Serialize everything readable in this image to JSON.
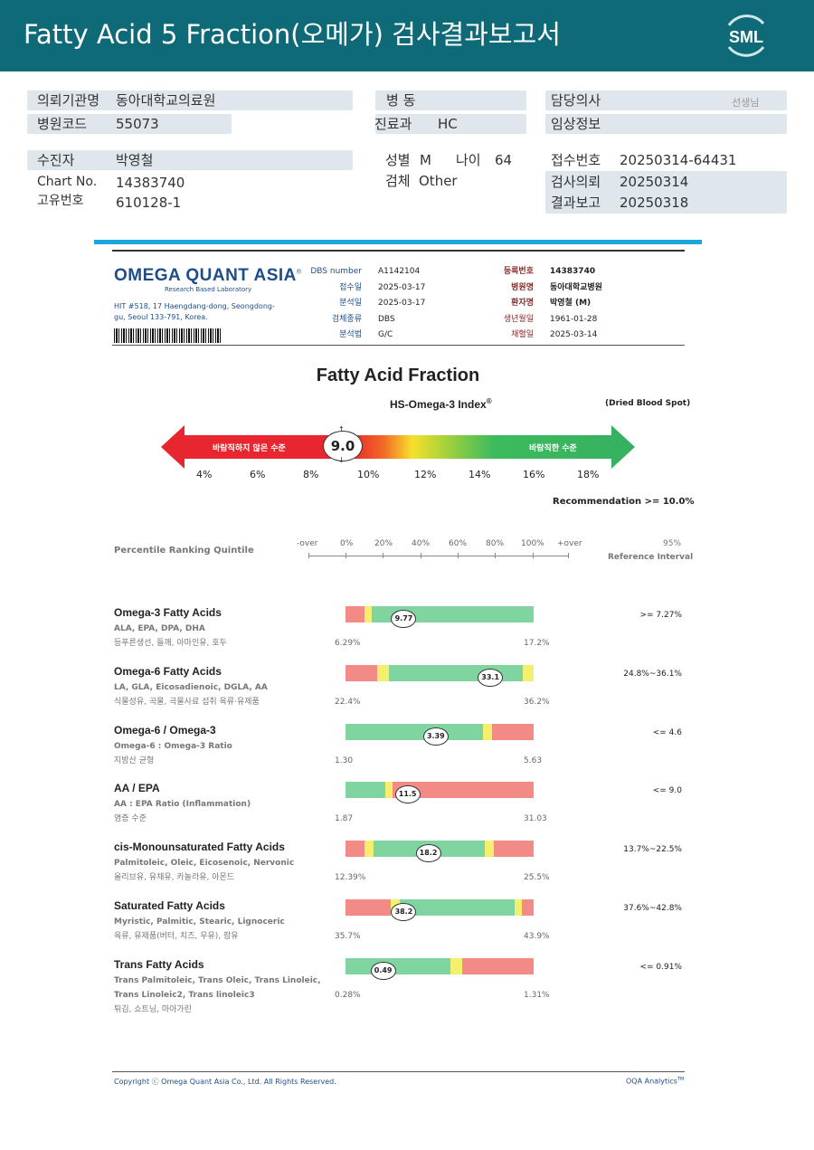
{
  "header": {
    "title": "Fatty Acid 5 Fraction(오메가) 검사결과보고서",
    "logo_text": "SML"
  },
  "patient": {
    "institution_label": "의뢰기관명",
    "institution": "동아대학교의료원",
    "hospital_code_label": "병원코드",
    "hospital_code": "55073",
    "ward_label": "병 동",
    "ward": "",
    "dept_label": "진료과",
    "dept": "HC",
    "doctor_label": "담당의사",
    "doctor_suffix": "선생님",
    "clinical_label": "임상정보",
    "name_label": "수진자",
    "name": "박영철",
    "chart_label": "Chart No.",
    "chart": "14383740",
    "unique_label": "고유번호",
    "unique": "610128-1",
    "sex_label": "성별",
    "sex": "M",
    "age_label": "나이",
    "age": "64",
    "specimen_label": "검체",
    "specimen": "Other",
    "receipt_label": "접수번호",
    "receipt": "20250314-64431",
    "request_label": "검사의뢰",
    "request": "20250314",
    "report_label": "결과보고",
    "report": "20250318"
  },
  "report_meta": {
    "logo": "OMEGA QUANT ASIA",
    "logo_reg": "®",
    "subtitle": "Research Based Laboratory",
    "address": "HIT #518, 17 Haengdang-dong, Seongdong-gu, Seoul 133-791, Korea.",
    "dbs_label": "DBS number",
    "dbs": "A1142104",
    "recv_label": "접수일",
    "recv": "2025-03-17",
    "analysis_label": "분석일",
    "analysis": "2025-03-17",
    "spec_label": "검체종류",
    "spec": "DBS",
    "method_label": "분석법",
    "method": "G/C",
    "reg_label": "등록번호",
    "reg": "14383740",
    "hosp_label": "병원명",
    "hosp": "동아대학교병원",
    "patient_label": "환자명",
    "patient": "박영철 (M)",
    "dob_label": "생년월일",
    "dob": "1961-01-28",
    "collect_label": "채혈일",
    "collect": "2025-03-14"
  },
  "omega_index": {
    "title": "Fatty Acid Fraction",
    "index_label": "HS-Omega-3 Index",
    "index_sup": "®",
    "sample_type": "(Dried Blood Spot)",
    "value": "9.0",
    "undesirable": "바람직하지 않은 수준",
    "desirable": "바람직한 수준",
    "ticks": [
      "4%",
      "6%",
      "8%",
      "10%",
      "12%",
      "14%",
      "16%",
      "18%"
    ],
    "recommendation": "Recommendation  >= 10.0%"
  },
  "scale": {
    "label": "Percentile Ranking Quintile",
    "ticks": [
      "-over",
      "0%",
      "20%",
      "40%",
      "60%",
      "80%",
      "100%",
      "+over"
    ],
    "ref_pct": "95%",
    "ref_label": "Reference Interval"
  },
  "rows": [
    {
      "name": "Omega-3 Fatty Acids",
      "components": "ALA, EPA, DPA, DHA",
      "foods": "등푸른생선, 들깨, 아마인유, 호두",
      "value": "9.77",
      "min": "6.29%",
      "max": "17.2%",
      "ref": ">= 7.27%",
      "segments": [
        [
          "#f28a86",
          0.1
        ],
        [
          "#f5ef6e",
          0.04
        ],
        [
          "#7fd4a0",
          0.86
        ]
      ],
      "marker": 0.31
    },
    {
      "name": "Omega-6 Fatty Acids",
      "components": "LA, GLA, Eicosadienoic, DGLA, AA",
      "foods": "식물성유, 곡물, 곡물사료 섭취 육류·유제품",
      "value": "33.1",
      "min": "22.4%",
      "max": "36.2%",
      "ref": "24.8%~36.1%",
      "segments": [
        [
          "#f28a86",
          0.17
        ],
        [
          "#f5ef6e",
          0.06
        ],
        [
          "#7fd4a0",
          0.71
        ],
        [
          "#f5ef6e",
          0.06
        ]
      ],
      "marker": 0.77
    },
    {
      "name": "Omega-6 / Omega-3",
      "components": "Omega-6 : Omega-3 Ratio",
      "foods": "지방산 균형",
      "value": "3.39",
      "min": "1.30",
      "max": "5.63",
      "ref": "<= 4.6",
      "segments": [
        [
          "#7fd4a0",
          0.73
        ],
        [
          "#f5ef6e",
          0.05
        ],
        [
          "#f28a86",
          0.22
        ]
      ],
      "marker": 0.48
    },
    {
      "name": "AA / EPA",
      "components": "AA : EPA Ratio (Inflammation)",
      "foods": "염증 수준",
      "value": "11.5",
      "min": "1.87",
      "max": "31.03",
      "ref": "<= 9.0",
      "segments": [
        [
          "#7fd4a0",
          0.21
        ],
        [
          "#f5ef6e",
          0.04
        ],
        [
          "#f28a86",
          0.75
        ]
      ],
      "marker": 0.33
    },
    {
      "name": "cis-Monounsaturated Fatty Acids",
      "components": "Palmitoleic, Oleic, Eicosenoic, Nervonic",
      "foods": "올리브유, 유채유, 카놀라유, 아몬드",
      "value": "18.2",
      "min": "12.39%",
      "max": "25.5%",
      "ref": "13.7%~22.5%",
      "segments": [
        [
          "#f28a86",
          0.1
        ],
        [
          "#f5ef6e",
          0.05
        ],
        [
          "#7fd4a0",
          0.59
        ],
        [
          "#f5ef6e",
          0.05
        ],
        [
          "#f28a86",
          0.21
        ]
      ],
      "marker": 0.44
    },
    {
      "name": "Saturated Fatty Acids",
      "components": "Myristic, Palmitic, Stearic, Lignoceric",
      "foods": "육류, 유제품(버터, 치즈, 우유), 팜유",
      "value": "38.2",
      "min": "35.7%",
      "max": "43.9%",
      "ref": "37.6%~42.8%",
      "segments": [
        [
          "#f28a86",
          0.24
        ],
        [
          "#f5ef6e",
          0.05
        ],
        [
          "#7fd4a0",
          0.61
        ],
        [
          "#f5ef6e",
          0.04
        ],
        [
          "#f28a86",
          0.06
        ]
      ],
      "marker": 0.31
    },
    {
      "name": "Trans Fatty Acids",
      "components": "Trans Palmitoleic, Trans Oleic, Trans Linoleic, Trans Linoleic2, Trans linoleic3",
      "foods": "튀김, 쇼트닝, 마아가린",
      "value": "0.49",
      "min": "0.28%",
      "max": "1.31%",
      "ref": "<= 0.91%",
      "segments": [
        [
          "#7fd4a0",
          0.56
        ],
        [
          "#f5ef6e",
          0.06
        ],
        [
          "#f28a86",
          0.38
        ]
      ],
      "marker": 0.2
    }
  ],
  "footer": {
    "copyright": "Copyright ⓒ Omega Quant Asia Co., Ltd.  All Rights Reserved.",
    "brand": "OQA Analytics",
    "brand_tm": "TM"
  },
  "colors": {
    "banner": "#0f6a77",
    "accent_blue": "#1aa6dc",
    "navy": "#1d4e8a",
    "pill": "#dfe6ec"
  }
}
